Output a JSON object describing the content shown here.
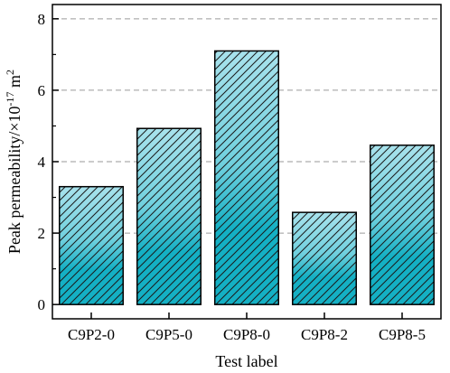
{
  "chart_data": {
    "type": "bar",
    "categories": [
      "C9P2-0",
      "C9P5-0",
      "C9P8-0",
      "C9P8-2",
      "C9P8-5"
    ],
    "values": [
      3.3,
      4.93,
      7.1,
      2.58,
      4.46
    ],
    "xlabel": "Test label",
    "ylabel_main": "Peak permeability/×10",
    "ylabel_exp": "-17",
    "ylabel_unit": " m",
    "ylabel_unit_exp": "2",
    "ylim": [
      -0.4,
      8.4
    ],
    "yticks": [
      0,
      2,
      4,
      6,
      8
    ],
    "grid": "horizontal dashed",
    "bar_fill_top": "#a8e2ec",
    "bar_fill_bottom": "#14b0c4",
    "bar_hatch": "diagonal",
    "bar_edge_color": "#000000"
  }
}
